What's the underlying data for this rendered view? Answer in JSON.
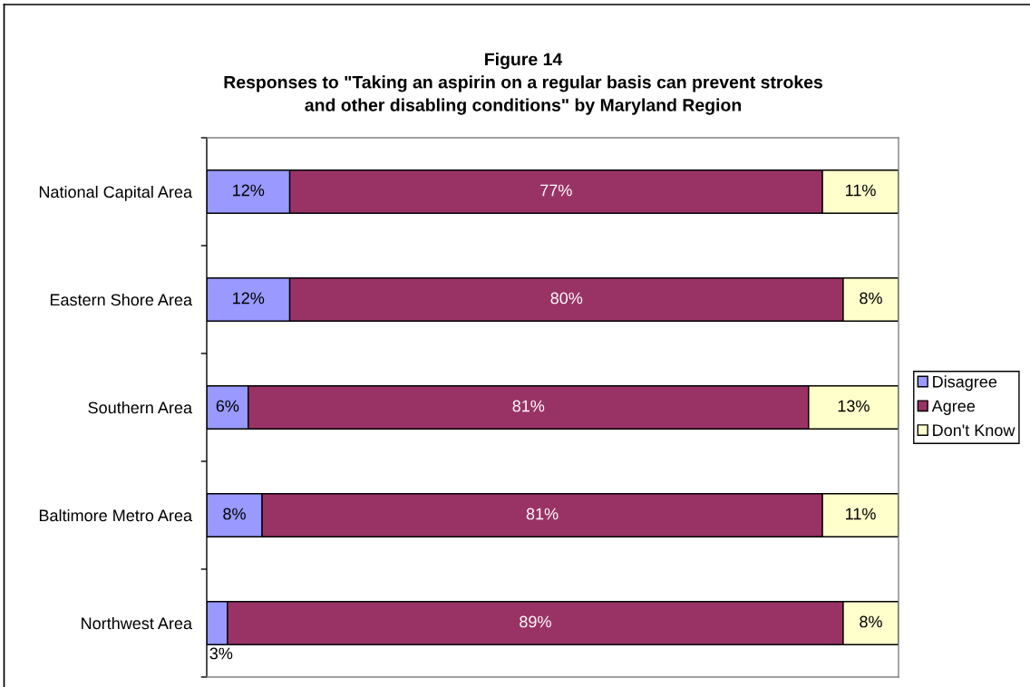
{
  "chart_data": {
    "type": "bar",
    "orientation": "horizontal",
    "stacked": true,
    "title": "Figure 14\nResponses to \"Taking an aspirin on a regular basis can prevent strokes\nand other disabling conditions\" by Maryland Region",
    "categories": [
      "National Capital Area",
      "Eastern Shore Area",
      "Southern Area",
      "Baltimore Metro Area",
      "Northwest Area"
    ],
    "series": [
      {
        "name": "Disagree",
        "color": "#9999ff",
        "values": [
          12,
          12,
          6,
          8,
          3
        ],
        "value_labels": [
          "12%",
          "12%",
          "6%",
          "8%",
          "3%"
        ]
      },
      {
        "name": "Agree",
        "color": "#993366",
        "values": [
          77,
          80,
          81,
          81,
          89
        ],
        "value_labels": [
          "77%",
          "80%",
          "81%",
          "81%",
          "89%"
        ]
      },
      {
        "name": "Don't Know",
        "color": "#ffffcc",
        "values": [
          11,
          8,
          13,
          11,
          8
        ],
        "value_labels": [
          "11%",
          "8%",
          "13%",
          "11%",
          "8%"
        ]
      }
    ],
    "xlim": [
      0,
      100
    ],
    "tick_labels": "y",
    "legend": "right",
    "grid": false
  }
}
